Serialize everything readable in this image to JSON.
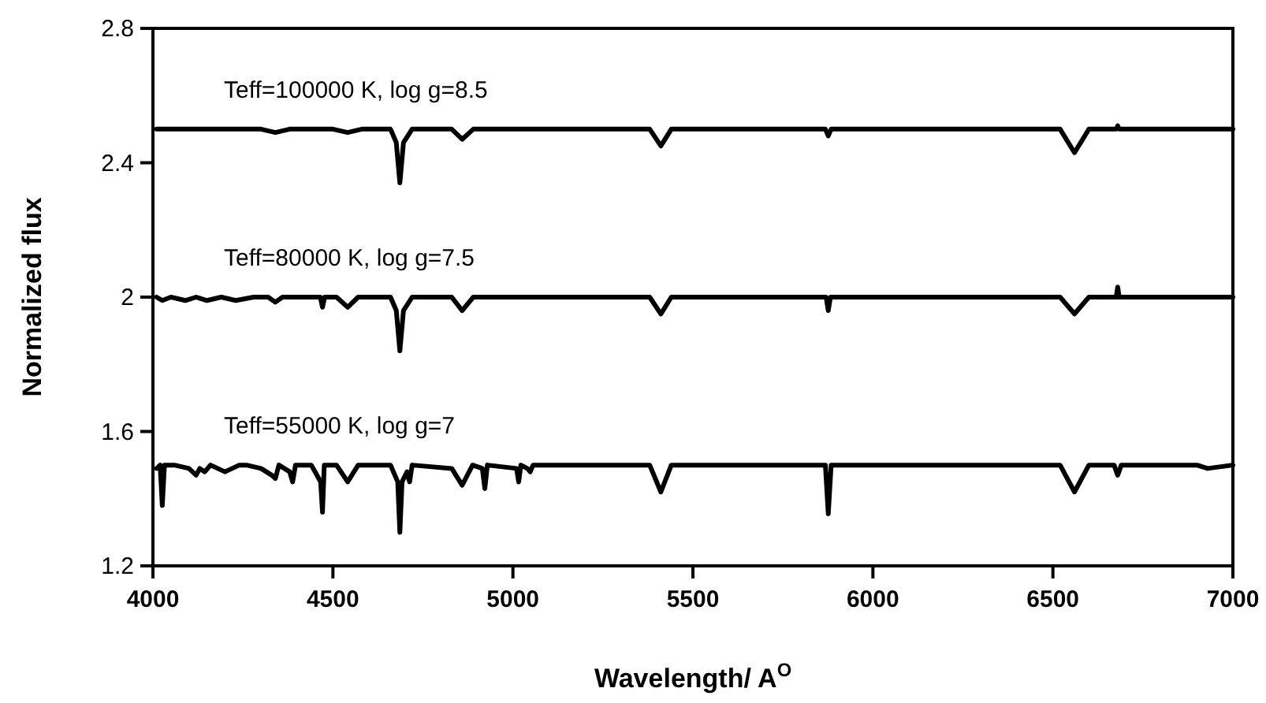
{
  "chart_data": {
    "type": "line",
    "xlabel": "Wavelength/ A$^{O}$",
    "ylabel": "Normalized flux",
    "xlim": [
      4000,
      7000
    ],
    "ylim": [
      1.2,
      2.8
    ],
    "xticks": [
      4000,
      4500,
      5000,
      5500,
      6000,
      6500,
      7000
    ],
    "yticks": [
      1.2,
      1.6,
      2,
      2.4,
      2.8
    ],
    "marker": "none",
    "line_style": "solid",
    "annotations": [
      "Teff=100000 K, log g=8.5",
      "Teff=80000 K, log g=7.5",
      "Teff=55000 K, log g=7"
    ],
    "series": [
      {
        "color": "#000000",
        "x": [
          4010,
          4300,
          4340,
          4380,
          4500,
          4541,
          4580,
          4660,
          4676,
          4686,
          4696,
          4720,
          4830,
          4859,
          4890,
          5380,
          5411,
          5440,
          5868,
          5876,
          5884,
          6520,
          6560,
          6600,
          6676,
          6680,
          6684,
          7000
        ],
        "values": [
          2.5,
          2.5,
          2.49,
          2.5,
          2.5,
          2.49,
          2.5,
          2.5,
          2.46,
          2.34,
          2.46,
          2.5,
          2.5,
          2.47,
          2.5,
          2.5,
          2.45,
          2.5,
          2.5,
          2.48,
          2.5,
          2.5,
          2.43,
          2.5,
          2.5,
          2.51,
          2.5,
          2.5
        ]
      },
      {
        "color": "#000000",
        "x": [
          4010,
          4026,
          4050,
          4090,
          4120,
          4150,
          4190,
          4230,
          4280,
          4320,
          4340,
          4360,
          4465,
          4471,
          4477,
          4510,
          4541,
          4570,
          4660,
          4676,
          4686,
          4696,
          4720,
          4830,
          4859,
          4890,
          5380,
          5411,
          5440,
          5870,
          5876,
          5882,
          6520,
          6560,
          6600,
          6676,
          6680,
          6684,
          7000
        ],
        "values": [
          2.0,
          1.99,
          2.0,
          1.99,
          2.0,
          1.99,
          2.0,
          1.99,
          2.0,
          2.0,
          1.985,
          2.0,
          2.0,
          1.97,
          2.0,
          2.0,
          1.97,
          2.0,
          2.0,
          1.96,
          1.84,
          1.96,
          2.0,
          2.0,
          1.96,
          2.0,
          2.0,
          1.95,
          2.0,
          2.0,
          1.96,
          2.0,
          2.0,
          1.95,
          2.0,
          2.0,
          2.03,
          2.0,
          2.0
        ]
      },
      {
        "color": "#000000",
        "x": [
          4010,
          4020,
          4026,
          4032,
          4060,
          4100,
          4120,
          4130,
          4144,
          4160,
          4200,
          4240,
          4260,
          4300,
          4330,
          4340,
          4350,
          4380,
          4388,
          4396,
          4440,
          4466,
          4471,
          4476,
          4510,
          4541,
          4570,
          4660,
          4680,
          4686,
          4692,
          4706,
          4713,
          4720,
          4830,
          4859,
          4888,
          4915,
          4922,
          4929,
          5010,
          5016,
          5022,
          5040,
          5048,
          5056,
          5380,
          5411,
          5440,
          5868,
          5876,
          5884,
          6520,
          6560,
          6600,
          6670,
          6680,
          6690,
          6900,
          6930,
          7000
        ],
        "values": [
          1.49,
          1.5,
          1.38,
          1.5,
          1.5,
          1.49,
          1.47,
          1.49,
          1.48,
          1.5,
          1.48,
          1.5,
          1.5,
          1.49,
          1.47,
          1.46,
          1.5,
          1.48,
          1.45,
          1.5,
          1.5,
          1.45,
          1.36,
          1.5,
          1.5,
          1.45,
          1.5,
          1.5,
          1.45,
          1.3,
          1.45,
          1.48,
          1.45,
          1.5,
          1.49,
          1.44,
          1.5,
          1.49,
          1.43,
          1.5,
          1.49,
          1.45,
          1.5,
          1.49,
          1.48,
          1.5,
          1.5,
          1.42,
          1.5,
          1.5,
          1.355,
          1.5,
          1.5,
          1.42,
          1.5,
          1.5,
          1.47,
          1.5,
          1.5,
          1.49,
          1.5
        ]
      }
    ]
  }
}
